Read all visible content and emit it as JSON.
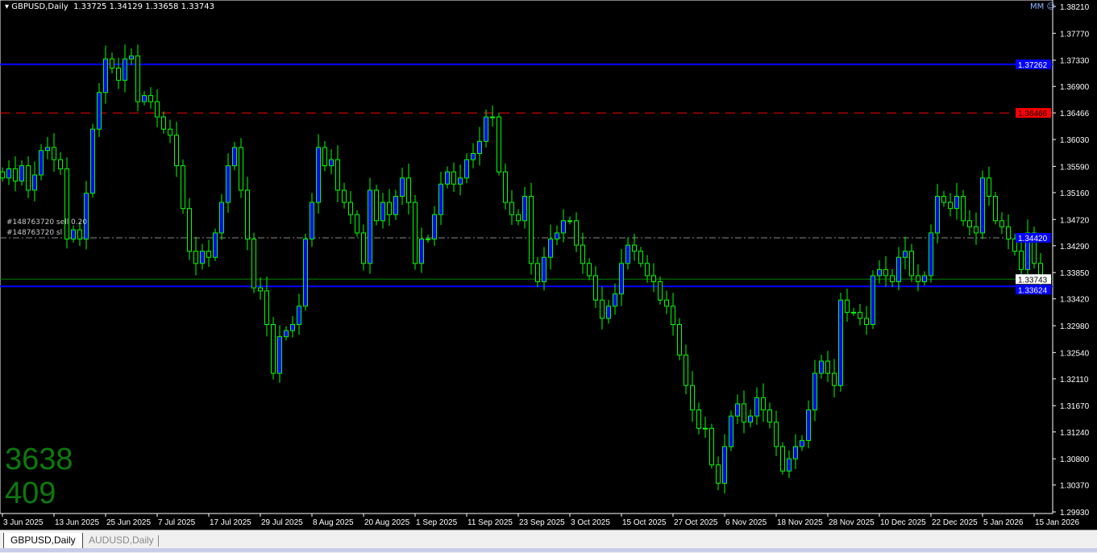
{
  "header": {
    "symbol": "GBPUSD,Daily",
    "ohlc": "1.33725 1.34129 1.33658 1.33743",
    "mm_label": "MM"
  },
  "counters": {
    "top": "3638",
    "bottom": "409"
  },
  "orders": {
    "entry_label": "#148763720 sell 0.20",
    "sl_label": "#148763720 sl"
  },
  "tabs": [
    {
      "label": "GBPUSD,Daily",
      "active": true
    },
    {
      "label": "AUDUSD,Daily",
      "active": false
    }
  ],
  "colors": {
    "bull": "#0000ff",
    "bear_outline": "#00ff00",
    "axis": "#ffffff",
    "resistance": "#0000ff",
    "red_level": "#ff0000",
    "current_price": "#008000"
  },
  "chart_data": {
    "type": "candlestick",
    "y_ticks": [
      "1.38210",
      "1.37770",
      "1.37330",
      "1.36900",
      "1.36466",
      "1.36030",
      "1.35590",
      "1.35160",
      "1.34720",
      "1.34290",
      "1.33850",
      "1.33420",
      "1.32980",
      "1.32540",
      "1.32110",
      "1.31670",
      "1.31240",
      "1.30800",
      "1.30370",
      "1.29930"
    ],
    "ylim": [
      1.2993,
      1.3821
    ],
    "x_labels": [
      "3 Jun 2025",
      "13 Jun 2025",
      "25 Jun 2025",
      "7 Jul 2025",
      "17 Jul 2025",
      "29 Jul 2025",
      "8 Aug 2025",
      "20 Aug 2025",
      "1 Sep 2025",
      "11 Sep 2025",
      "23 Sep 2025",
      "3 Oct 2025",
      "15 Oct 2025",
      "27 Oct 2025",
      "6 Nov 2025",
      "18 Nov 2025",
      "28 Nov 2025",
      "10 Dec 2025",
      "22 Dec 2025",
      "5 Jan 2026",
      "15 Jan 2026"
    ],
    "levels": [
      {
        "price": 1.37262,
        "label": "1.37262",
        "color": "#0000ff",
        "style": "solid"
      },
      {
        "price": 1.36466,
        "label": "1.36466",
        "color": "#ff0000",
        "style": "dashed"
      },
      {
        "price": 1.3442,
        "label": "1.34420",
        "color": "#0000ff",
        "style": "dashdot"
      },
      {
        "price": 1.33743,
        "label": "1.33743",
        "color": "#008000",
        "style": "solid"
      },
      {
        "price": 1.33624,
        "label": "1.33624",
        "color": "#0000ff",
        "style": "solid"
      }
    ],
    "closes": [
      1.354,
      1.3555,
      1.3535,
      1.356,
      1.352,
      1.3545,
      1.3585,
      1.359,
      1.357,
      1.3555,
      1.344,
      1.3455,
      1.344,
      1.3515,
      1.362,
      1.368,
      1.3735,
      1.372,
      1.37,
      1.3735,
      1.374,
      1.3665,
      1.3675,
      1.3665,
      1.364,
      1.362,
      1.361,
      1.356,
      1.349,
      1.342,
      1.34,
      1.342,
      1.341,
      1.345,
      1.35,
      1.356,
      1.359,
      1.352,
      1.344,
      1.336,
      1.3355,
      1.33,
      1.322,
      1.328,
      1.329,
      1.33,
      1.333,
      1.344,
      1.35,
      1.359,
      1.356,
      1.357,
      1.352,
      1.35,
      1.348,
      1.345,
      1.34,
      1.352,
      1.347,
      1.35,
      1.348,
      1.351,
      1.354,
      1.35,
      1.34,
      1.344,
      1.344,
      1.348,
      1.353,
      1.355,
      1.353,
      1.354,
      1.357,
      1.358,
      1.36,
      1.364,
      1.364,
      1.355,
      1.35,
      1.348,
      1.347,
      1.351,
      1.34,
      1.337,
      1.341,
      1.344,
      1.345,
      1.347,
      1.347,
      1.343,
      1.34,
      1.338,
      1.334,
      1.331,
      1.333,
      1.335,
      1.34,
      1.343,
      1.342,
      1.34,
      1.338,
      1.337,
      1.334,
      1.333,
      1.33,
      1.325,
      1.32,
      1.316,
      1.313,
      1.313,
      1.307,
      1.304,
      1.31,
      1.315,
      1.317,
      1.314,
      1.315,
      1.318,
      1.316,
      1.314,
      1.31,
      1.306,
      1.308,
      1.31,
      1.311,
      1.316,
      1.322,
      1.324,
      1.322,
      1.32,
      1.334,
      1.332,
      1.332,
      1.331,
      1.33,
      1.338,
      1.339,
      1.338,
      1.337,
      1.341,
      1.342,
      1.338,
      1.337,
      1.338,
      1.345,
      1.351,
      1.35,
      1.349,
      1.351,
      1.347,
      1.346,
      1.345,
      1.354,
      1.351,
      1.347,
      1.346,
      1.344,
      1.342,
      1.339,
      1.345,
      1.34,
      1.33743
    ]
  }
}
